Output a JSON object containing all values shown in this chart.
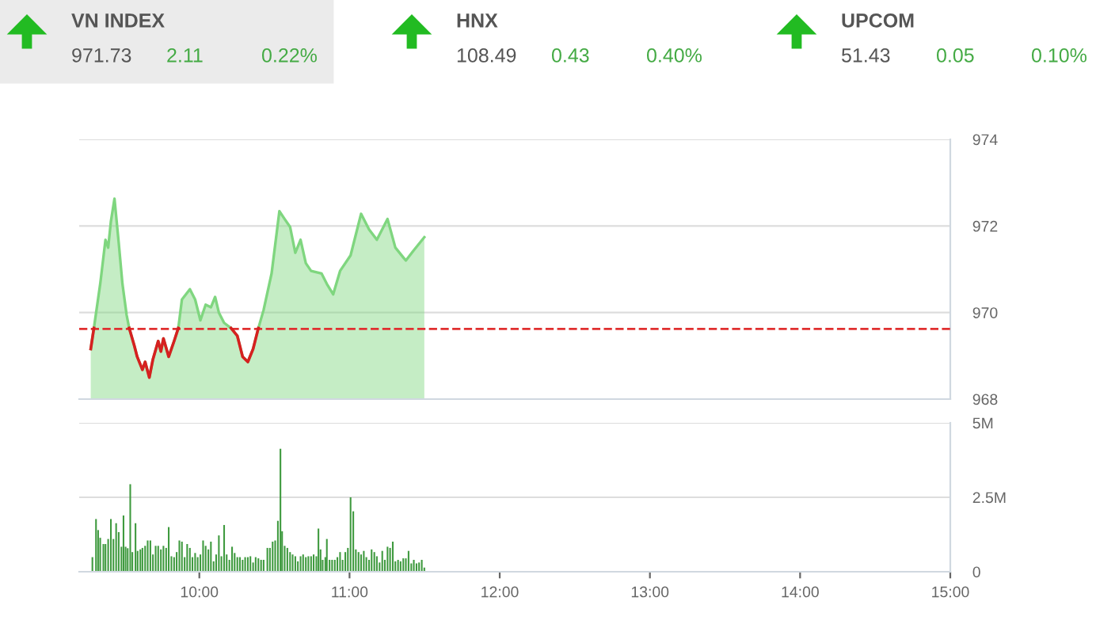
{
  "chart_data": [
    {
      "type": "other",
      "annotations": [
        "VN INDEX",
        "971.73",
        "2.11",
        "0.22%",
        "HNX",
        "108.49",
        "0.43",
        "0.40%",
        "UPCOM",
        "51.43",
        "0.05",
        "0.10%"
      ]
    },
    {
      "type": "area",
      "x": [
        9.277,
        9.298,
        9.34,
        9.375,
        9.393,
        9.411,
        9.435,
        9.463,
        9.488,
        9.516,
        9.533,
        9.568,
        9.586,
        9.621,
        9.639,
        9.667,
        9.691,
        9.726,
        9.744,
        9.761,
        9.796,
        9.832,
        9.86,
        9.884,
        9.937,
        9.972,
        10.007,
        10.042,
        10.077,
        10.105,
        10.13,
        10.165,
        10.211,
        10.253,
        10.288,
        10.323,
        10.358,
        10.393,
        10.428,
        10.481,
        10.533,
        10.568,
        10.604,
        10.639,
        10.674,
        10.709,
        10.744,
        10.814,
        10.849,
        10.891,
        10.937,
        11.007,
        11.077,
        11.13,
        11.182,
        11.253,
        11.305,
        11.375,
        11.428,
        11.498
      ],
      "series": [
        {
          "type": "area",
          "color": "#7fd67f",
          "values": [
            969.16,
            969.64,
            970.66,
            971.68,
            971.5,
            972.1,
            972.63,
            971.62,
            970.66,
            969.94,
            969.64,
            969.22,
            968.98,
            968.68,
            968.86,
            968.5,
            968.92,
            969.34,
            969.1,
            969.4,
            968.98,
            969.34,
            969.64,
            970.3,
            970.54,
            970.3,
            969.82,
            970.18,
            970.12,
            970.36,
            970.0,
            969.76,
            969.64,
            969.46,
            968.98,
            968.86,
            969.16,
            969.64,
            970.06,
            970.9,
            972.34,
            972.16,
            971.98,
            971.38,
            971.68,
            971.14,
            970.96,
            970.9,
            970.66,
            970.42,
            970.96,
            971.32,
            972.28,
            971.92,
            971.68,
            972.16,
            971.5,
            971.2,
            971.44,
            971.74
          ]
        },
        {
          "type": "line",
          "color": "#d62020",
          "values": [
            969.16,
            969.64,
            null,
            null,
            null,
            null,
            null,
            null,
            null,
            null,
            969.64,
            969.22,
            968.98,
            968.68,
            968.86,
            968.5,
            968.92,
            969.34,
            969.1,
            969.4,
            968.98,
            969.34,
            969.64,
            null,
            null,
            null,
            null,
            null,
            null,
            null,
            null,
            null,
            969.64,
            969.46,
            968.98,
            968.86,
            969.16,
            969.64,
            null,
            null,
            null,
            null,
            null,
            null,
            null,
            null,
            null,
            null,
            null,
            null,
            null,
            null,
            null,
            null,
            null,
            null,
            null,
            null,
            null,
            null
          ]
        }
      ],
      "xlim": [
        9.2,
        15
      ],
      "ylim": [
        968,
        974
      ],
      "yticks": [
        968,
        970,
        972,
        974
      ],
      "tick_labels": "y",
      "grid": "y",
      "marker": "none",
      "line_style": "solid",
      "ref_lines": [
        {
          "axis": "y",
          "value": 969.62,
          "color": "#e03030",
          "line_style": "dashed"
        }
      ]
    },
    {
      "type": "bar",
      "color": "#3f9a3f",
      "x": [
        9.288,
        9.312,
        9.326,
        9.34,
        9.361,
        9.375,
        9.393,
        9.411,
        9.428,
        9.446,
        9.463,
        9.481,
        9.495,
        9.509,
        9.523,
        9.54,
        9.554,
        9.575,
        9.589,
        9.607,
        9.621,
        9.639,
        9.656,
        9.674,
        9.691,
        9.709,
        9.726,
        9.744,
        9.761,
        9.779,
        9.796,
        9.814,
        9.832,
        9.849,
        9.867,
        9.884,
        9.902,
        9.919,
        9.937,
        9.954,
        9.972,
        9.989,
        10.007,
        10.025,
        10.042,
        10.06,
        10.077,
        10.095,
        10.112,
        10.13,
        10.147,
        10.165,
        10.182,
        10.2,
        10.218,
        10.235,
        10.253,
        10.27,
        10.288,
        10.305,
        10.323,
        10.34,
        10.358,
        10.375,
        10.393,
        10.411,
        10.428,
        10.453,
        10.47,
        10.488,
        10.505,
        10.523,
        10.54,
        10.551,
        10.568,
        10.586,
        10.604,
        10.621,
        10.639,
        10.656,
        10.674,
        10.691,
        10.709,
        10.726,
        10.744,
        10.761,
        10.779,
        10.793,
        10.807,
        10.821,
        10.839,
        10.849,
        10.867,
        10.884,
        10.902,
        10.919,
        10.937,
        10.954,
        10.972,
        10.989,
        11.007,
        11.025,
        11.042,
        11.06,
        11.077,
        11.095,
        11.112,
        11.13,
        11.147,
        11.165,
        11.182,
        11.2,
        11.218,
        11.235,
        11.253,
        11.27,
        11.288,
        11.305,
        11.323,
        11.34,
        11.358,
        11.375,
        11.393,
        11.411,
        11.428,
        11.446,
        11.463,
        11.481,
        11.498
      ],
      "values": [
        0.49,
        1.77,
        1.4,
        1.14,
        0.93,
        0.93,
        1.1,
        1.77,
        1.1,
        1.63,
        1.33,
        0.84,
        1.89,
        0.84,
        0.79,
        2.94,
        0.66,
        1.63,
        0.7,
        0.75,
        0.8,
        0.87,
        1.05,
        1.05,
        0.58,
        0.87,
        0.87,
        0.75,
        0.87,
        0.8,
        1.5,
        0.52,
        0.49,
        0.66,
        1.05,
        1.01,
        0.49,
        0.93,
        0.8,
        0.49,
        0.63,
        0.49,
        0.58,
        1.05,
        0.87,
        0.75,
        1.01,
        0.35,
        0.58,
        1.22,
        0.52,
        1.57,
        0.58,
        0.4,
        0.84,
        0.63,
        0.49,
        0.49,
        0.4,
        0.49,
        0.49,
        0.52,
        0.31,
        0.49,
        0.45,
        0.4,
        0.4,
        0.8,
        0.8,
        1.01,
        1.05,
        1.71,
        4.13,
        1.36,
        0.87,
        0.8,
        0.66,
        0.58,
        0.52,
        0.35,
        0.52,
        0.58,
        0.49,
        0.52,
        0.52,
        0.58,
        0.52,
        1.45,
        0.75,
        0.4,
        0.49,
        1.1,
        0.4,
        0.4,
        0.4,
        0.49,
        0.66,
        0.4,
        0.66,
        0.8,
        2.5,
        2.03,
        0.75,
        0.66,
        0.58,
        0.7,
        0.49,
        0.4,
        0.75,
        0.66,
        0.52,
        0.31,
        0.7,
        0.4,
        0.84,
        0.8,
        1.01,
        0.35,
        0.4,
        0.35,
        0.45,
        0.45,
        0.7,
        0.28,
        0.4,
        0.28,
        0.31,
        0.4,
        0.14
      ],
      "xlim": [
        9.2,
        15
      ],
      "xticks": [
        {
          "value": 10,
          "label": "10:00"
        },
        {
          "value": 11,
          "label": "11:00"
        },
        {
          "value": 12,
          "label": "12:00"
        },
        {
          "value": 13,
          "label": "13:00"
        },
        {
          "value": 14,
          "label": "14:00"
        },
        {
          "value": 15,
          "label": "15:00"
        }
      ],
      "ylim": [
        0,
        5
      ],
      "yticks": [
        0,
        {
          "value": 2.5,
          "label": "2.5M"
        },
        {
          "value": 5,
          "label": "5M"
        }
      ],
      "grid": "y"
    }
  ]
}
